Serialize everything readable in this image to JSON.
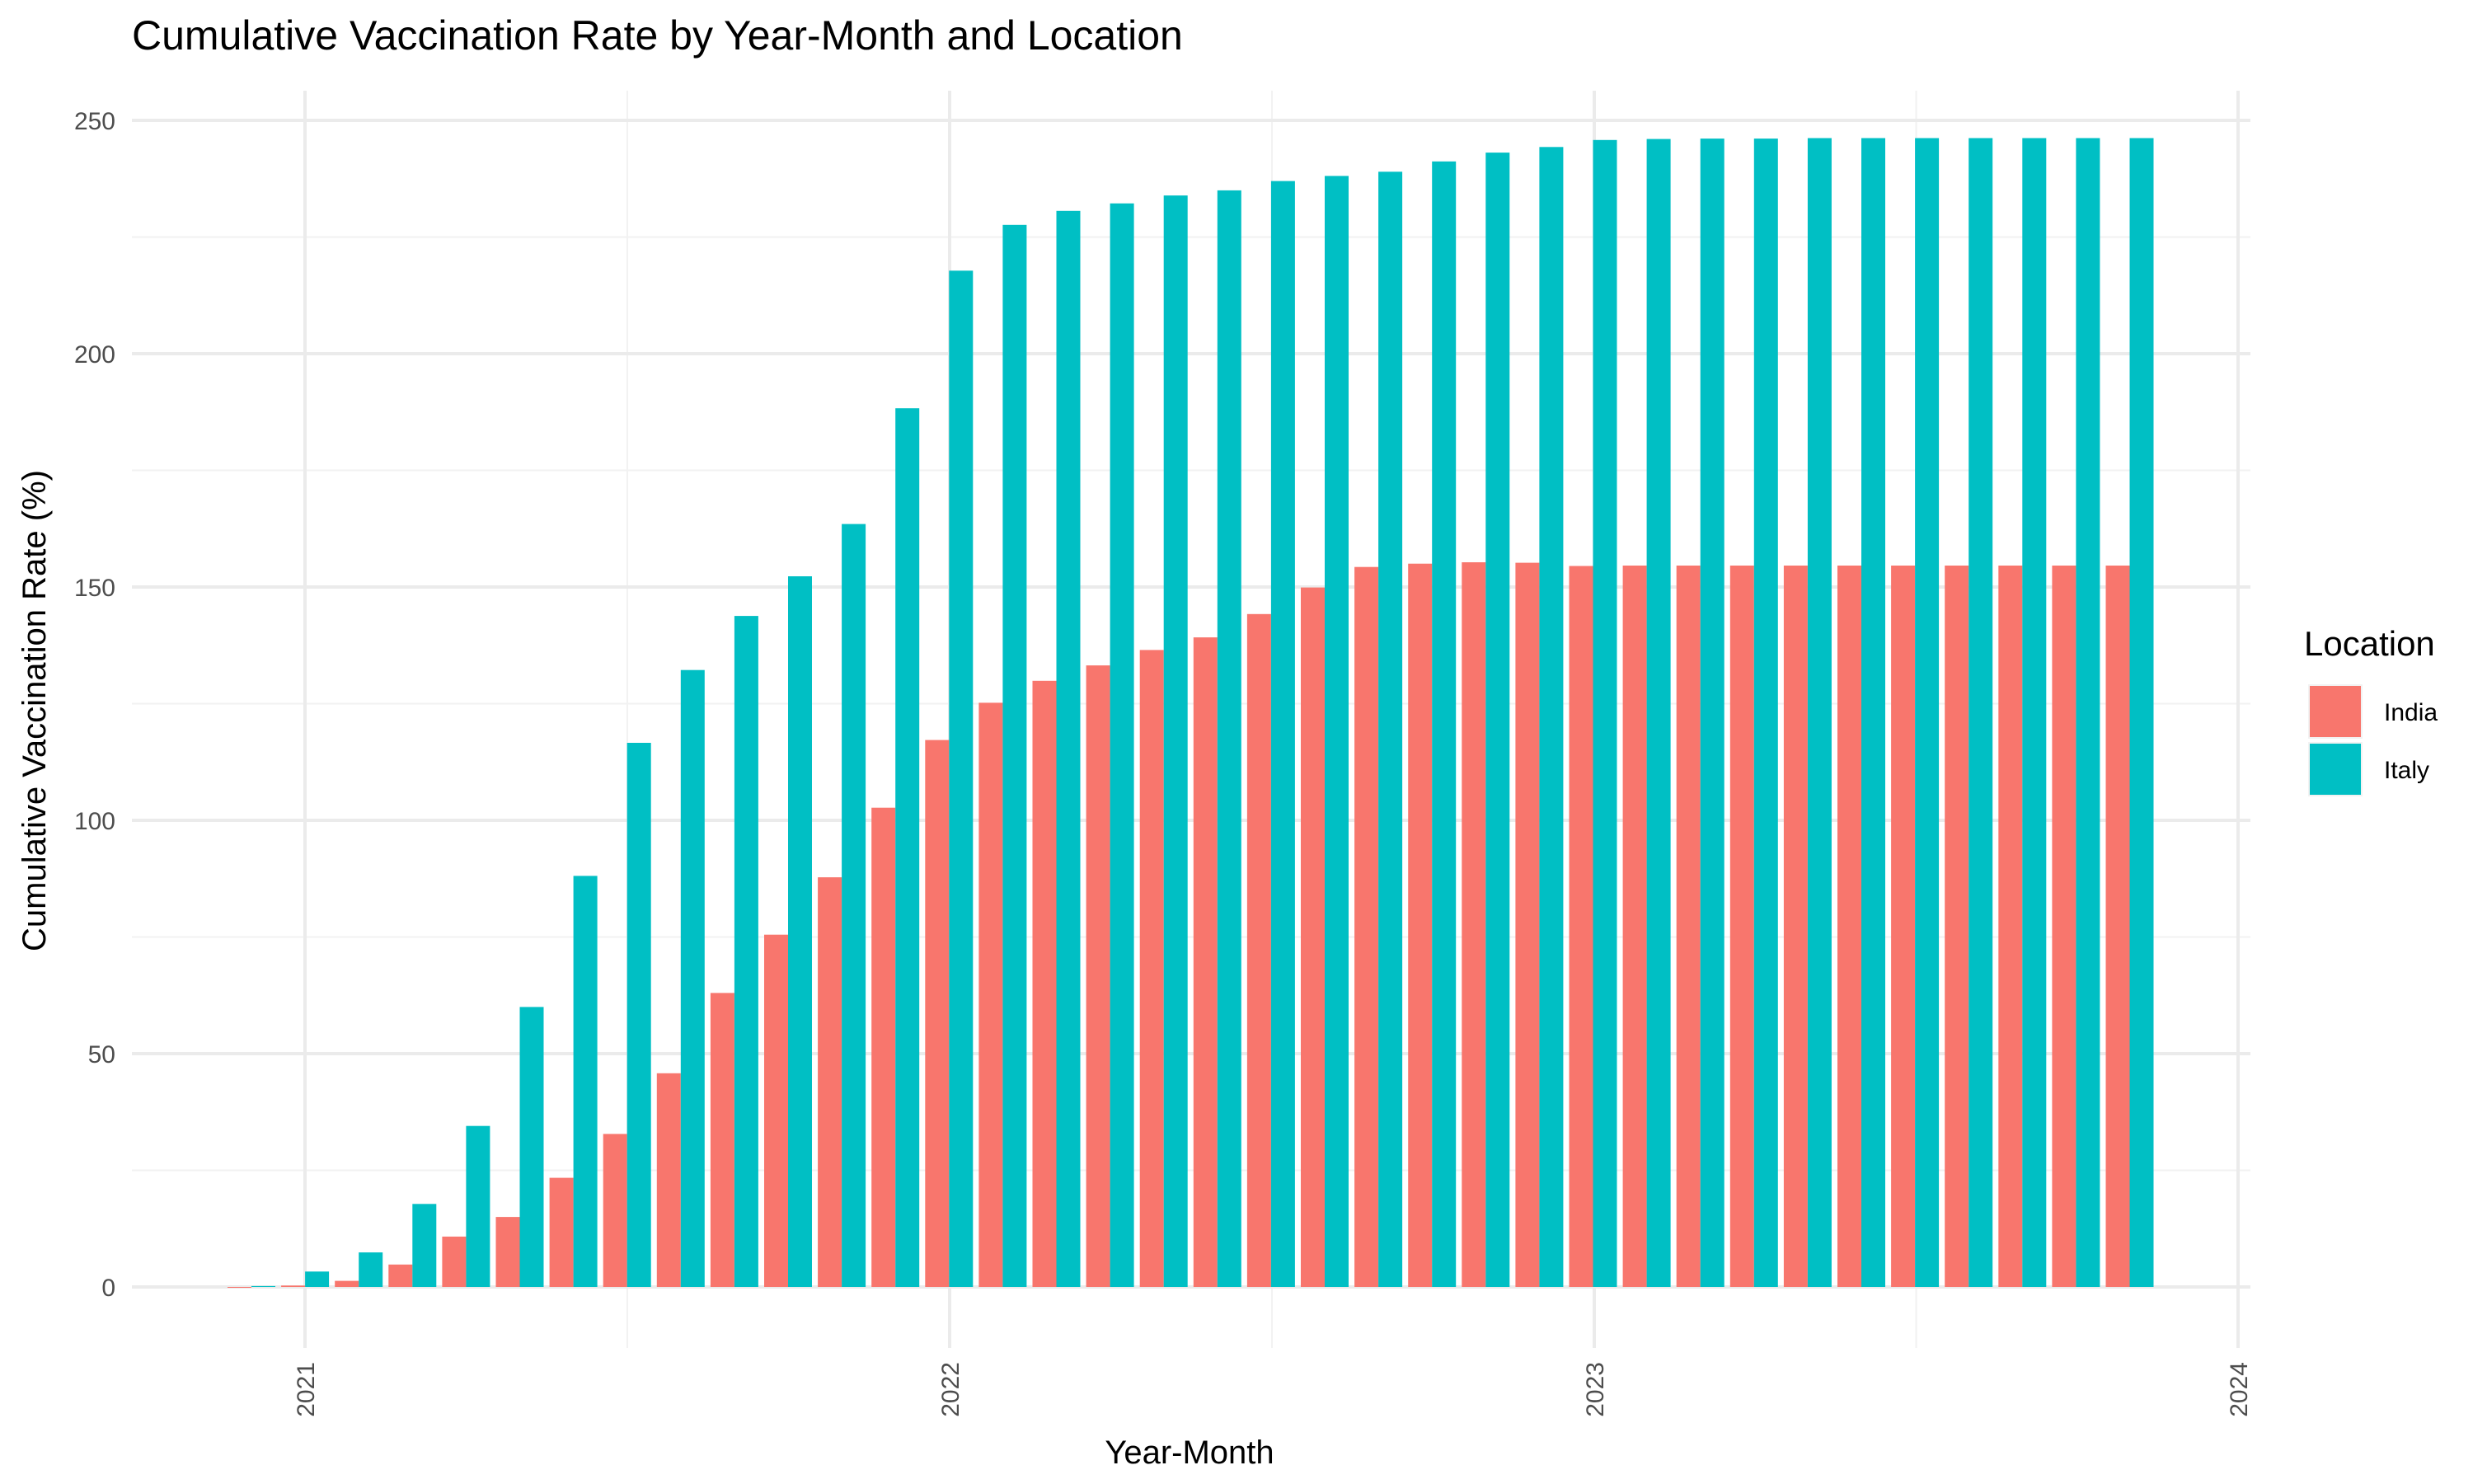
{
  "chart_data": {
    "type": "bar",
    "title": "Cumulative Vaccination Rate by Year-Month and Location",
    "xlabel": "Year-Month",
    "ylabel": "Cumulative Vaccination Rate (%)",
    "ylim": [
      -12,
      252
    ],
    "y_ticks": [
      0,
      50,
      100,
      150,
      200,
      250
    ],
    "x_ticks": [
      "2021",
      "2022",
      "2023",
      "2024"
    ],
    "grid": true,
    "legend": {
      "title": "Location",
      "position": "right"
    },
    "categories": [
      "2020-12",
      "2021-01",
      "2021-02",
      "2021-03",
      "2021-04",
      "2021-05",
      "2021-06",
      "2021-07",
      "2021-08",
      "2021-09",
      "2021-10",
      "2021-11",
      "2021-12",
      "2022-01",
      "2022-02",
      "2022-03",
      "2022-04",
      "2022-05",
      "2022-06",
      "2022-07",
      "2022-08",
      "2022-09",
      "2022-10",
      "2022-11",
      "2022-12",
      "2023-01",
      "2023-02",
      "2023-03",
      "2023-04",
      "2023-05",
      "2023-06",
      "2023-07",
      "2023-08",
      "2023-09",
      "2023-10",
      "2023-11"
    ],
    "series": [
      {
        "name": "India",
        "color": "#F8766D",
        "values": [
          0,
          0.3,
          1.3,
          4.8,
          10.8,
          15.0,
          23.4,
          32.8,
          45.8,
          63.0,
          75.5,
          87.8,
          102.7,
          117.2,
          125.2,
          129.9,
          133.2,
          136.5,
          139.2,
          144.2,
          149.9,
          154.3,
          155.0,
          155.3,
          155.2,
          154.5,
          154.6,
          154.6,
          154.6,
          154.6,
          154.6,
          154.6,
          154.6,
          154.6,
          154.6,
          154.6
        ]
      },
      {
        "name": "Italy",
        "color": "#00BFC4",
        "values": [
          0.2,
          3.3,
          7.4,
          17.8,
          34.5,
          60.0,
          88.1,
          116.6,
          132.2,
          143.8,
          152.3,
          163.5,
          188.3,
          217.8,
          227.6,
          230.6,
          232.2,
          233.9,
          235.0,
          237.0,
          238.1,
          239.0,
          241.2,
          243.1,
          244.3,
          245.8,
          246.0,
          246.1,
          246.1,
          246.2,
          246.2,
          246.2,
          246.2,
          246.2,
          246.2,
          246.2
        ]
      }
    ]
  }
}
